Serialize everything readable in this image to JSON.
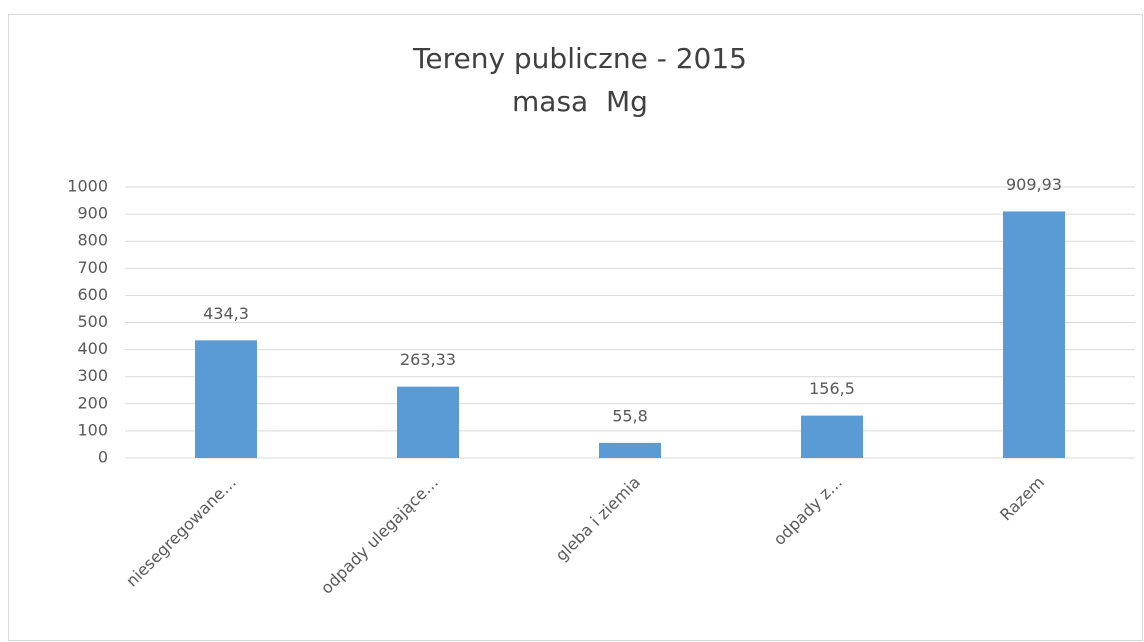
{
  "chart_data": {
    "type": "bar",
    "title": "Tereny publiczne - 2015",
    "subtitle": "masa  Mg",
    "categories": [
      "niesegregowane…",
      "odpady ulegające…",
      "gleba i ziemia",
      "odpady z…",
      "Razem"
    ],
    "values": [
      434.3,
      263.33,
      55.8,
      156.5,
      909.93
    ],
    "value_labels": [
      "434,3",
      "263,33",
      "55,8",
      "156,5",
      "909,93"
    ],
    "color": "#5b9bd5",
    "ylim": [
      0,
      1000
    ],
    "yticks": [
      0,
      100,
      200,
      300,
      400,
      500,
      600,
      700,
      800,
      900,
      1000
    ],
    "grid": true
  }
}
